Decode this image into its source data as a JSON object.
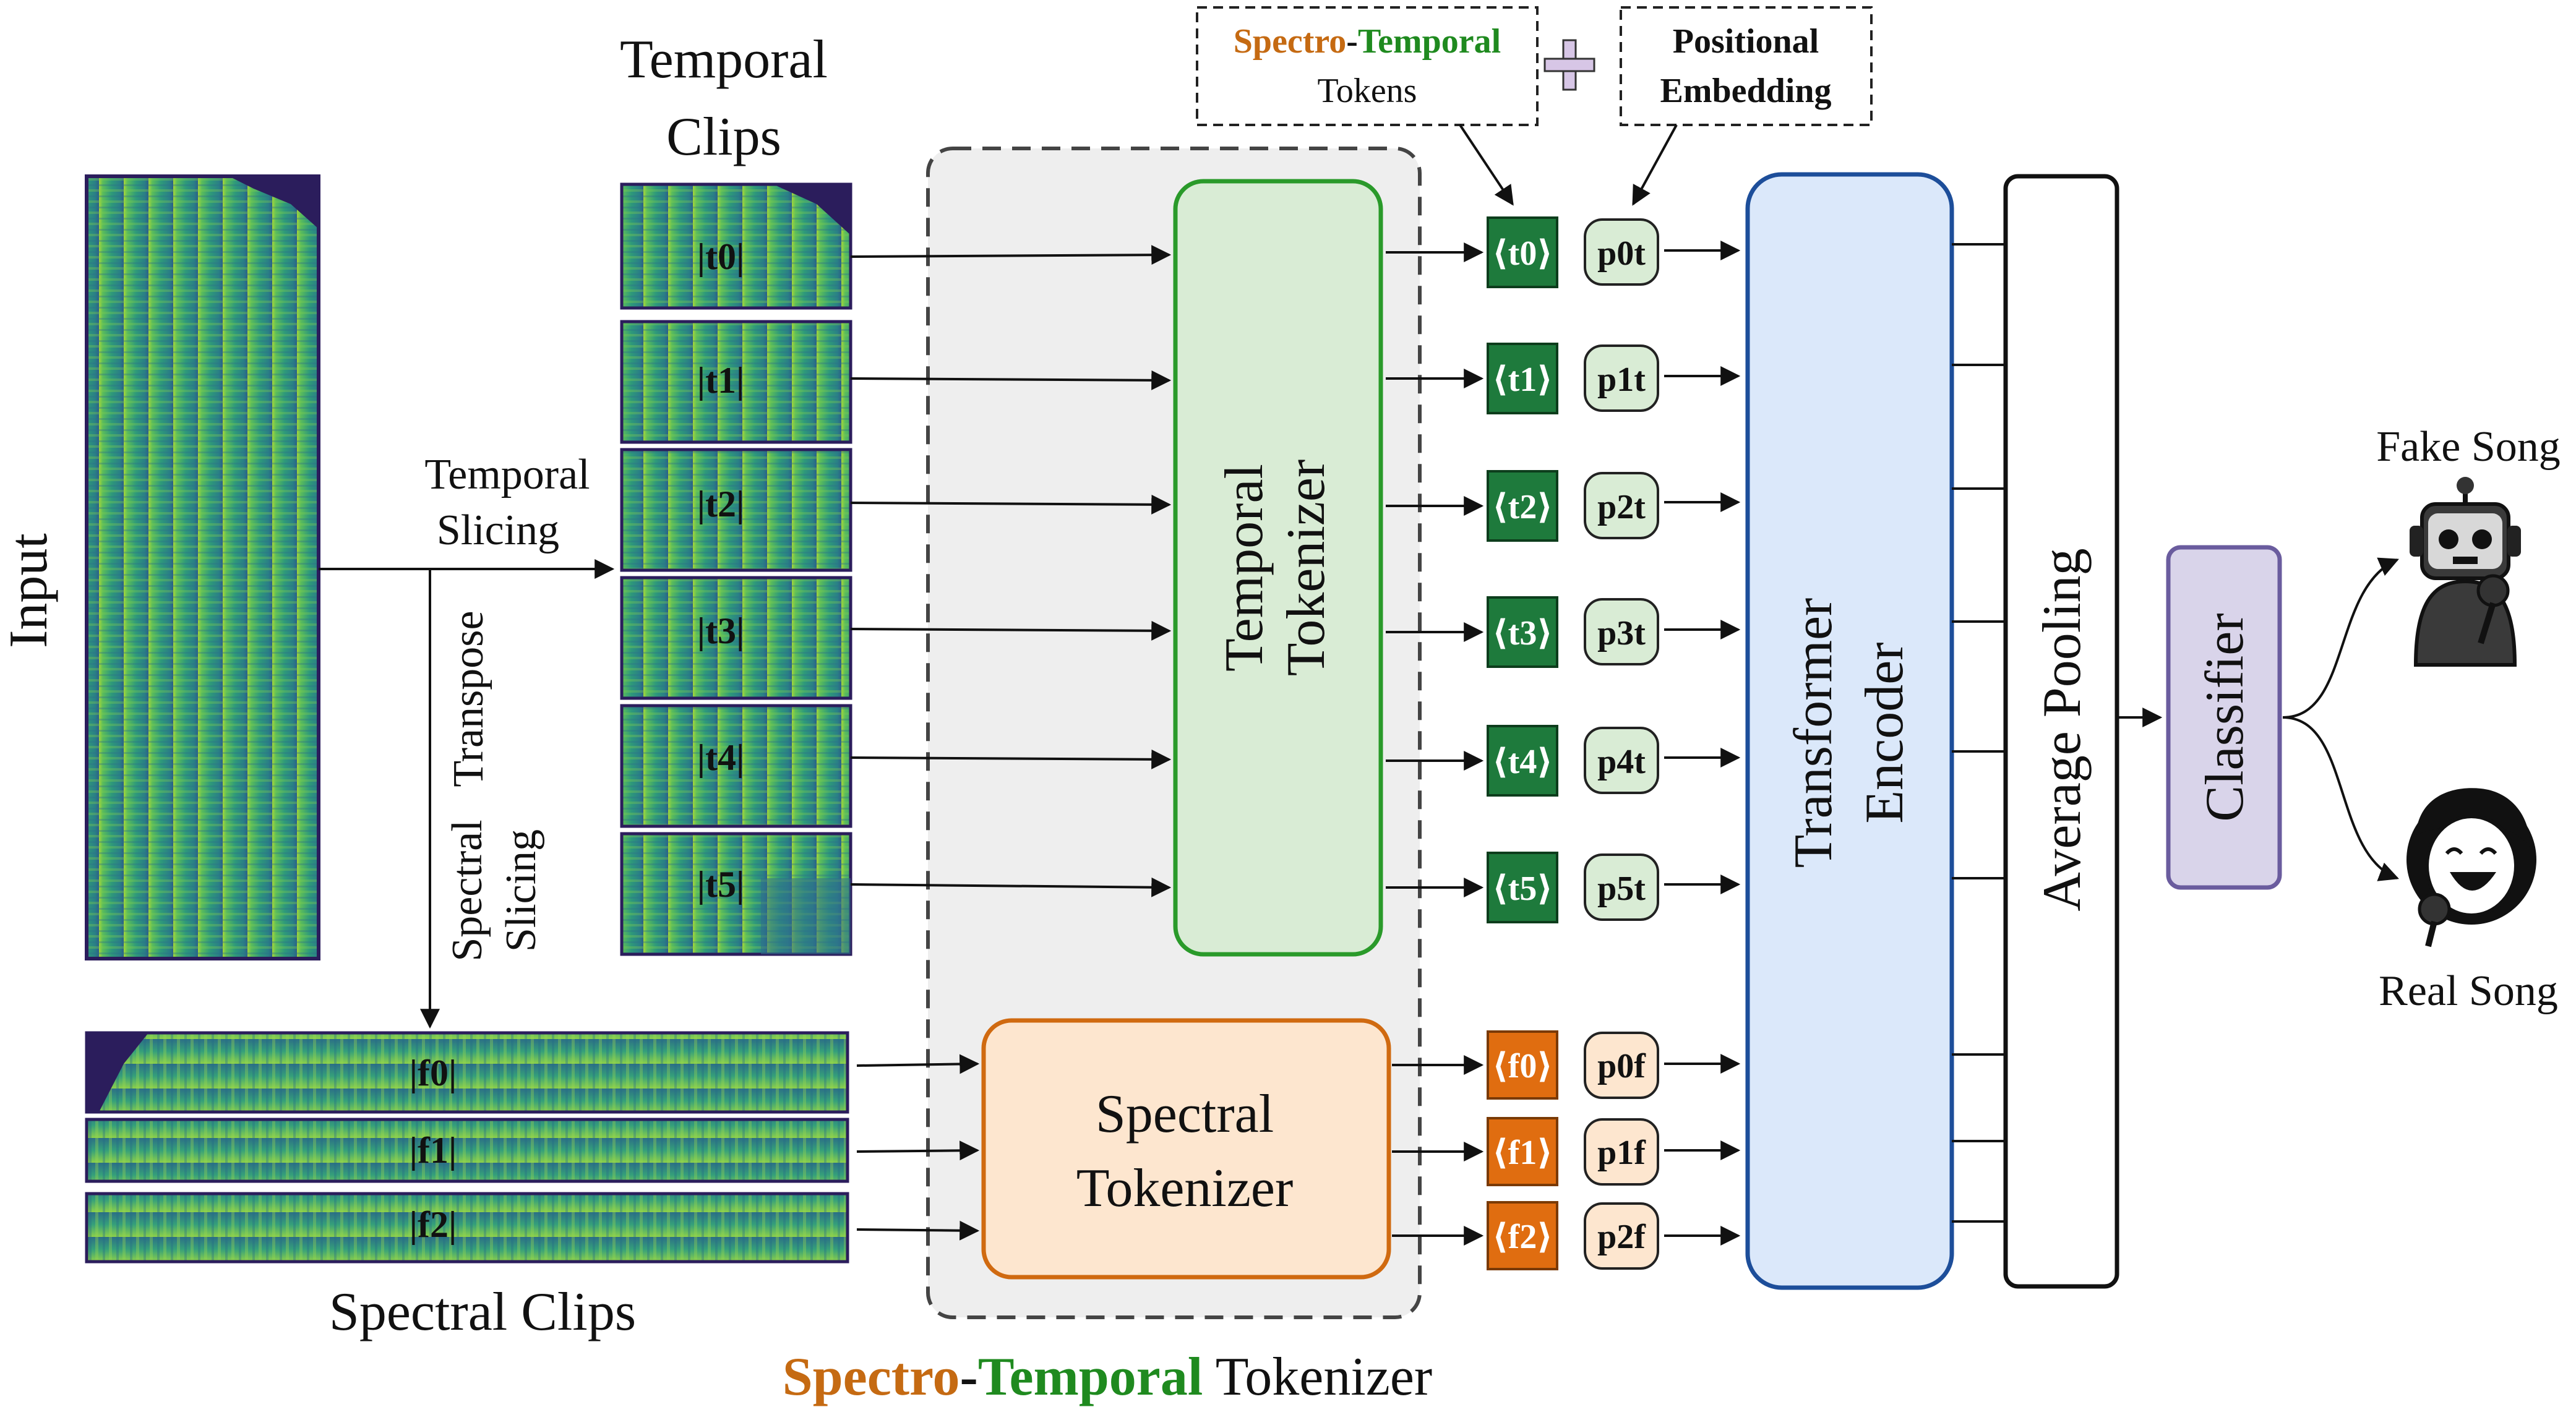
{
  "labels": {
    "input": "Input",
    "temporal_clips": [
      "Temporal",
      "Clips"
    ],
    "temporal_slicing": [
      "Temporal",
      "Slicing"
    ],
    "transpose": "Transpose",
    "spectral_slicing": [
      "Spectral",
      "Slicing"
    ],
    "spectral_clips": "Spectral Clips",
    "temporal_tokenizer": [
      "Temporal",
      "Tokenizer"
    ],
    "spectral_tokenizer": [
      "Spectral",
      "Tokenizer"
    ],
    "transformer_encoder": [
      "Transformer",
      "Encoder"
    ],
    "average_pooling": "Average Pooling",
    "classifier": "Classifier",
    "fake_song": "Fake Song",
    "real_song": "Real Song",
    "legend_spectro": "Spectro",
    "legend_dash": "-",
    "legend_temporal": "Temporal",
    "legend_tokens": "Tokens",
    "legend_positional": "Positional",
    "legend_embedding": "Embedding",
    "plus": "+",
    "footer_spectro": "Spectro",
    "footer_dash": "-",
    "footer_temporal": "Temporal",
    "footer_tokenizer": " Tokenizer"
  },
  "temporal_clips": [
    "|t0|",
    "|t1|",
    "|t2|",
    "|t3|",
    "|t4|",
    "|t5|"
  ],
  "spectral_clips": [
    "|f0|",
    "|f1|",
    "|f2|"
  ],
  "temporal_tokens": [
    "⟨t0⟩",
    "⟨t1⟩",
    "⟨t2⟩",
    "⟨t3⟩",
    "⟨t4⟩",
    "⟨t5⟩"
  ],
  "spectral_tokens": [
    "⟨f0⟩",
    "⟨f1⟩",
    "⟨f2⟩"
  ],
  "temporal_pos": [
    "p0t",
    "p1t",
    "p2t",
    "p3t",
    "p4t",
    "p5t"
  ],
  "spectral_pos": [
    "p0f",
    "p1f",
    "p2f"
  ],
  "colors": {
    "temporal": "#1f8a1f",
    "spectral": "#c56a12",
    "temporal_token_fill": "#1e7a3c",
    "spectral_token_fill": "#e06d10",
    "temporal_box_fill": "#d9ecd5",
    "spectral_box_fill": "#fde6cf",
    "encoder_fill": "#dbe8fa",
    "encoder_stroke": "#1d4e9a",
    "classifier_fill": "#d9d4ea",
    "classifier_stroke": "#6a5c9e",
    "panel_fill": "#eeeeee"
  },
  "icons": {
    "fake": "robot-singer-icon",
    "real": "human-singer-icon"
  }
}
